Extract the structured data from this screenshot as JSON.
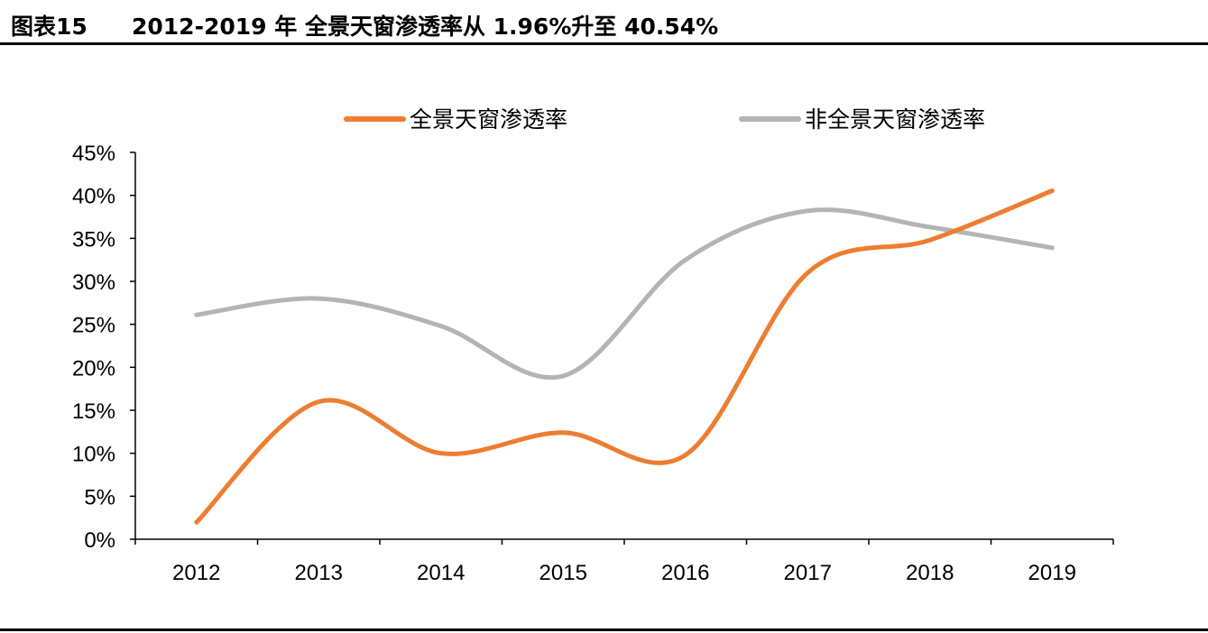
{
  "header": {
    "figure_number": "图表15",
    "figure_title": "2012-2019 年 全景天窗渗透率从 1.96%升至 40.54%"
  },
  "chart_data": {
    "type": "line",
    "categories": [
      "2012",
      "2013",
      "2014",
      "2015",
      "2016",
      "2017",
      "2018",
      "2019"
    ],
    "series": [
      {
        "name": "全景天窗渗透率",
        "color": "#ed7d31",
        "values": [
          1.96,
          16.0,
          10.0,
          12.4,
          9.8,
          31.0,
          34.8,
          40.54
        ]
      },
      {
        "name": "非全景天窗渗透率",
        "color": "#b4b4b4",
        "values": [
          26.1,
          28.0,
          24.8,
          19.0,
          32.5,
          38.2,
          36.3,
          33.9
        ]
      }
    ],
    "y_ticks": [
      "0%",
      "5%",
      "10%",
      "15%",
      "20%",
      "25%",
      "30%",
      "35%",
      "40%",
      "45%"
    ],
    "ylim": [
      0,
      45
    ],
    "y_unit": "%",
    "smooth": true,
    "grid": false,
    "legend_position": "top"
  }
}
